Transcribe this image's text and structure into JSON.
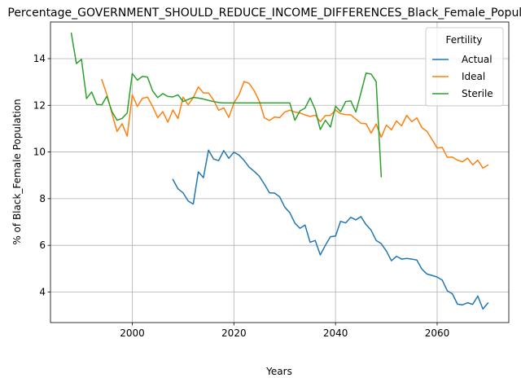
{
  "chart_data": {
    "type": "line",
    "title": "Percentage_GOVERNMENT_SHOULD_REDUCE_INCOME_DIFFERENCES_Black_Female_Population",
    "xlabel": "Years",
    "ylabel": "% of Black_Female Population",
    "xlim": [
      1983.9,
      2074.1
    ],
    "ylim": [
      2.69,
      15.57
    ],
    "x_ticks": [
      2000,
      2020,
      2040,
      2060
    ],
    "x_tick_labels": [
      "2000",
      "2020",
      "2040",
      "2060"
    ],
    "y_ticks": [
      4,
      6,
      8,
      10,
      12,
      14
    ],
    "y_tick_labels": [
      "4",
      "6",
      "8",
      "10",
      "12",
      "14"
    ],
    "grid": true,
    "legend": {
      "title": "Fertility",
      "placement": "top-right"
    },
    "series": [
      {
        "name": "Actual",
        "color": "#1f77b4",
        "points": [
          [
            2008,
            8.82
          ],
          [
            2009,
            8.42
          ],
          [
            2010,
            8.25
          ],
          [
            2011,
            7.9
          ],
          [
            2012,
            7.77
          ],
          [
            2013,
            9.15
          ],
          [
            2014,
            8.9
          ],
          [
            2015,
            10.08
          ],
          [
            2016,
            9.7
          ],
          [
            2017,
            9.63
          ],
          [
            2018,
            10.06
          ],
          [
            2019,
            9.73
          ],
          [
            2020,
            9.99
          ],
          [
            2021,
            9.87
          ],
          [
            2022,
            9.64
          ],
          [
            2023,
            9.35
          ],
          [
            2024,
            9.17
          ],
          [
            2025,
            8.96
          ],
          [
            2026,
            8.62
          ],
          [
            2027,
            8.25
          ],
          [
            2028,
            8.24
          ],
          [
            2029,
            8.08
          ],
          [
            2030,
            7.64
          ],
          [
            2031,
            7.4
          ],
          [
            2032,
            6.95
          ],
          [
            2033,
            6.73
          ],
          [
            2034,
            6.87
          ],
          [
            2035,
            6.13
          ],
          [
            2036,
            6.21
          ],
          [
            2037,
            5.59
          ],
          [
            2038,
            6.0
          ],
          [
            2039,
            6.37
          ],
          [
            2040,
            6.4
          ],
          [
            2041,
            7.03
          ],
          [
            2042,
            6.96
          ],
          [
            2043,
            7.2
          ],
          [
            2044,
            7.09
          ],
          [
            2045,
            7.23
          ],
          [
            2046,
            6.89
          ],
          [
            2047,
            6.65
          ],
          [
            2048,
            6.21
          ],
          [
            2049,
            6.07
          ],
          [
            2050,
            5.76
          ],
          [
            2051,
            5.34
          ],
          [
            2052,
            5.53
          ],
          [
            2053,
            5.41
          ],
          [
            2054,
            5.44
          ],
          [
            2055,
            5.41
          ],
          [
            2056,
            5.37
          ],
          [
            2057,
            4.98
          ],
          [
            2058,
            4.77
          ],
          [
            2059,
            4.71
          ],
          [
            2060,
            4.64
          ],
          [
            2061,
            4.51
          ],
          [
            2062,
            4.05
          ],
          [
            2063,
            3.92
          ],
          [
            2064,
            3.48
          ],
          [
            2065,
            3.45
          ],
          [
            2066,
            3.54
          ],
          [
            2067,
            3.47
          ],
          [
            2068,
            3.83
          ],
          [
            2069,
            3.27
          ],
          [
            2070,
            3.53
          ]
        ]
      },
      {
        "name": "Ideal",
        "color": "#ff7f0e",
        "points": [
          [
            1994,
            13.1
          ],
          [
            1995,
            12.46
          ],
          [
            1996,
            11.65
          ],
          [
            1997,
            10.88
          ],
          [
            1998,
            11.21
          ],
          [
            1999,
            10.68
          ],
          [
            2000,
            12.45
          ],
          [
            2001,
            11.95
          ],
          [
            2002,
            12.3
          ],
          [
            2003,
            12.35
          ],
          [
            2004,
            11.95
          ],
          [
            2005,
            11.47
          ],
          [
            2006,
            11.73
          ],
          [
            2007,
            11.28
          ],
          [
            2008,
            11.8
          ],
          [
            2009,
            11.43
          ],
          [
            2010,
            12.35
          ],
          [
            2011,
            12.02
          ],
          [
            2012,
            12.33
          ],
          [
            2013,
            12.79
          ],
          [
            2014,
            12.53
          ],
          [
            2015,
            12.53
          ],
          [
            2016,
            12.22
          ],
          [
            2017,
            11.79
          ],
          [
            2018,
            11.89
          ],
          [
            2019,
            11.48
          ],
          [
            2020,
            12.1
          ],
          [
            2021,
            12.45
          ],
          [
            2022,
            13.02
          ],
          [
            2023,
            12.94
          ],
          [
            2024,
            12.62
          ],
          [
            2025,
            12.18
          ],
          [
            2026,
            11.46
          ],
          [
            2027,
            11.35
          ],
          [
            2028,
            11.5
          ],
          [
            2029,
            11.47
          ],
          [
            2030,
            11.71
          ],
          [
            2031,
            11.79
          ],
          [
            2032,
            11.71
          ],
          [
            2033,
            11.67
          ],
          [
            2034,
            11.59
          ],
          [
            2035,
            11.52
          ],
          [
            2036,
            11.58
          ],
          [
            2037,
            11.3
          ],
          [
            2038,
            11.56
          ],
          [
            2039,
            11.57
          ],
          [
            2040,
            11.8
          ],
          [
            2041,
            11.64
          ],
          [
            2042,
            11.6
          ],
          [
            2043,
            11.59
          ],
          [
            2044,
            11.41
          ],
          [
            2045,
            11.23
          ],
          [
            2046,
            11.21
          ],
          [
            2047,
            10.81
          ],
          [
            2048,
            11.2
          ],
          [
            2049,
            10.63
          ],
          [
            2050,
            11.15
          ],
          [
            2051,
            10.95
          ],
          [
            2052,
            11.33
          ],
          [
            2053,
            11.12
          ],
          [
            2054,
            11.57
          ],
          [
            2055,
            11.3
          ],
          [
            2056,
            11.46
          ],
          [
            2057,
            11.04
          ],
          [
            2058,
            10.88
          ],
          [
            2059,
            10.53
          ],
          [
            2060,
            10.17
          ],
          [
            2061,
            10.2
          ],
          [
            2062,
            9.77
          ],
          [
            2063,
            9.78
          ],
          [
            2064,
            9.65
          ],
          [
            2065,
            9.58
          ],
          [
            2066,
            9.74
          ],
          [
            2067,
            9.45
          ],
          [
            2068,
            9.65
          ],
          [
            2069,
            9.31
          ],
          [
            2070,
            9.44
          ]
        ]
      },
      {
        "name": "Sterile",
        "color": "#2ca02c",
        "points": [
          [
            1988,
            15.09
          ],
          [
            1989,
            13.79
          ],
          [
            1990,
            13.97
          ],
          [
            1991,
            12.29
          ],
          [
            1992,
            12.57
          ],
          [
            1993,
            12.04
          ],
          [
            1994,
            12.02
          ],
          [
            1995,
            12.39
          ],
          [
            1996,
            11.73
          ],
          [
            1997,
            11.36
          ],
          [
            1998,
            11.44
          ],
          [
            1999,
            11.67
          ],
          [
            2000,
            13.36
          ],
          [
            2001,
            13.08
          ],
          [
            2002,
            13.24
          ],
          [
            2003,
            13.21
          ],
          [
            2004,
            12.62
          ],
          [
            2005,
            12.33
          ],
          [
            2006,
            12.5
          ],
          [
            2007,
            12.38
          ],
          [
            2008,
            12.36
          ],
          [
            2009,
            12.45
          ],
          [
            2010,
            12.16
          ],
          [
            2011,
            12.25
          ],
          [
            2012,
            12.34
          ],
          [
            2013,
            12.31
          ],
          [
            2014,
            12.27
          ],
          [
            2015,
            12.21
          ],
          [
            2016,
            12.16
          ],
          [
            2017,
            12.12
          ],
          [
            2018,
            12.1
          ],
          [
            2019,
            12.1
          ],
          [
            2020,
            12.1
          ],
          [
            2021,
            12.1
          ],
          [
            2022,
            12.1
          ],
          [
            2023,
            12.1
          ],
          [
            2024,
            12.1
          ],
          [
            2025,
            12.1
          ],
          [
            2026,
            12.1
          ],
          [
            2027,
            12.1
          ],
          [
            2028,
            12.1
          ],
          [
            2029,
            12.1
          ],
          [
            2030,
            12.1
          ],
          [
            2031,
            12.1
          ],
          [
            2032,
            11.36
          ],
          [
            2033,
            11.76
          ],
          [
            2034,
            11.88
          ],
          [
            2035,
            12.32
          ],
          [
            2036,
            11.82
          ],
          [
            2037,
            10.96
          ],
          [
            2038,
            11.36
          ],
          [
            2039,
            11.07
          ],
          [
            2040,
            11.96
          ],
          [
            2041,
            11.73
          ],
          [
            2042,
            12.16
          ],
          [
            2043,
            12.19
          ],
          [
            2044,
            11.71
          ],
          [
            2045,
            12.53
          ],
          [
            2046,
            13.38
          ],
          [
            2047,
            13.34
          ],
          [
            2048,
            13.01
          ],
          [
            2049,
            8.94
          ]
        ]
      }
    ]
  }
}
